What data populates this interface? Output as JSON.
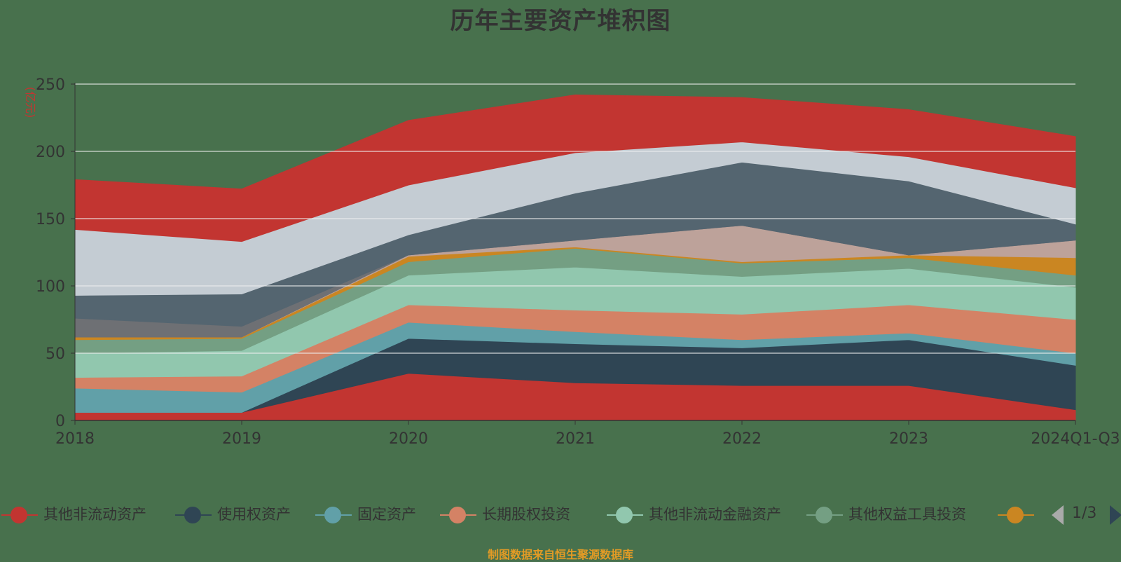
{
  "title": "历年主要资产堆积图",
  "source": "制图数据来自恒生聚源数据库",
  "pager": {
    "text": "1/3"
  },
  "chart_data": {
    "type": "area",
    "stacked": true,
    "title": "历年主要资产堆积图",
    "ylabel": "(亿元)",
    "categories": [
      "2018",
      "2019",
      "2020",
      "2021",
      "2022",
      "2023",
      "2024Q1-Q3"
    ],
    "ylim": [
      0,
      250
    ],
    "yticks": [
      0,
      50,
      100,
      150,
      200,
      250
    ],
    "grid": true,
    "legend_position": "bottom",
    "series": [
      {
        "name": "其他非流动资产",
        "color": "#c23531",
        "values": [
          6,
          6,
          35,
          28,
          26,
          26,
          8
        ]
      },
      {
        "name": "使用权资产",
        "color": "#2f4554",
        "values": [
          0,
          0,
          26,
          29,
          28,
          34,
          33
        ]
      },
      {
        "name": "固定资产",
        "color": "#61a0a8",
        "values": [
          18,
          15,
          12,
          9,
          6,
          5,
          9
        ]
      },
      {
        "name": "长期股权投资",
        "color": "#d48265",
        "values": [
          8,
          12,
          13,
          16,
          19,
          21,
          25
        ]
      },
      {
        "name": "其他非流动金融资产",
        "color": "#91c7ae",
        "values": [
          18,
          19,
          22,
          32,
          28,
          27,
          24
        ]
      },
      {
        "name": "其他权益工具投资",
        "color": "#749f83",
        "values": [
          10,
          9,
          10,
          14,
          10,
          8,
          9
        ]
      },
      {
        "name": "",
        "color": "#ca8622",
        "values": [
          2,
          1,
          4,
          1,
          1,
          2,
          13
        ]
      },
      {
        "name": "",
        "color": "#bda29a",
        "values": [
          0,
          0,
          1,
          5,
          27,
          0,
          13
        ]
      },
      {
        "name": "",
        "color": "#6e7074",
        "values": [
          14,
          8,
          0,
          0,
          0,
          0,
          0
        ]
      },
      {
        "name": "",
        "color": "#546570",
        "values": [
          17,
          24,
          15,
          35,
          47,
          55,
          12
        ]
      },
      {
        "name": "",
        "color": "#c4ccd3",
        "values": [
          49,
          39,
          37,
          30,
          15,
          18,
          27
        ]
      },
      {
        "name": "",
        "color": "#c23531",
        "values": [
          37,
          39,
          48,
          43,
          33,
          35,
          38
        ]
      }
    ]
  }
}
